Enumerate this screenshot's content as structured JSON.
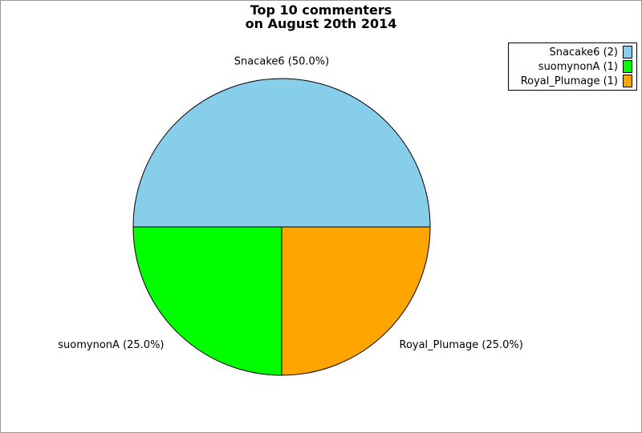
{
  "title": {
    "line1": "Top 10 commenters",
    "line2": "on August 20th 2014"
  },
  "legend": {
    "items": [
      {
        "label": "Snacake6 (2)",
        "color": "#87CEEB"
      },
      {
        "label": "suomynonA (1)",
        "color": "#00FF00"
      },
      {
        "label": "Royal_Plumage (1)",
        "color": "#FFA500"
      }
    ]
  },
  "chart_data": {
    "type": "pie",
    "title": "Top 10 commenters on August 20th 2014",
    "start_angle_deg": 0,
    "direction": "counterclockwise",
    "legend_position": "upper right",
    "slices": [
      {
        "name": "Snacake6",
        "count": 2,
        "percent": 50.0,
        "label": "Snacake6 (50.0%)",
        "legend_label": "Snacake6 (2)",
        "color": "#87CEEB"
      },
      {
        "name": "suomynonA",
        "count": 1,
        "percent": 25.0,
        "label": "suomynonA (25.0%)",
        "legend_label": "suomynonA (1)",
        "color": "#00FF00"
      },
      {
        "name": "Royal_Plumage",
        "count": 1,
        "percent": 25.0,
        "label": "Royal_Plumage (25.0%)",
        "legend_label": "Royal_Plumage (1)",
        "color": "#FFA500"
      }
    ]
  }
}
